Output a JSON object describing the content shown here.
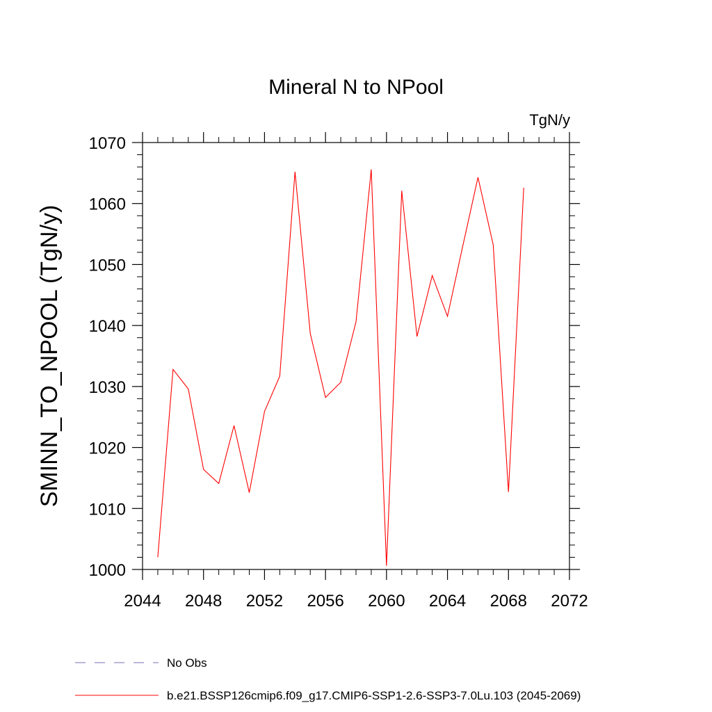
{
  "chart_data": {
    "type": "line",
    "title": "Mineral N to NPool",
    "units_label": "TgN/y",
    "xlabel": "",
    "ylabel": "SMINN_TO_NPOOL  (TgN/y)",
    "xlim": [
      2044,
      2072
    ],
    "ylim": [
      1000,
      1070
    ],
    "x_ticks": [
      2044,
      2048,
      2052,
      2056,
      2060,
      2064,
      2068,
      2072
    ],
    "y_ticks": [
      1000,
      1010,
      1020,
      1030,
      1040,
      1050,
      1060,
      1070
    ],
    "x_minor_step": 1,
    "y_minor_step": 2,
    "grid": false,
    "legend_position": "bottom-left",
    "series": [
      {
        "name": "b.e21.BSSP126cmip6.f09_g17.CMIP6-SSP1-2.6-SSP3-7.0Lu.103 (2045-2069)",
        "color": "#ff0000",
        "dash": "solid",
        "x": [
          2045,
          2046,
          2047,
          2048,
          2049,
          2050,
          2051,
          2052,
          2053,
          2054,
          2055,
          2056,
          2057,
          2058,
          2059,
          2060,
          2061,
          2062,
          2063,
          2064,
          2065,
          2066,
          2067,
          2068,
          2069
        ],
        "y": [
          1002.0,
          1032.8,
          1029.6,
          1016.4,
          1014.1,
          1023.6,
          1012.6,
          1025.9,
          1031.7,
          1065.2,
          1038.7,
          1028.2,
          1030.7,
          1040.6,
          1065.6,
          1000.6,
          1062.1,
          1038.2,
          1048.2,
          1041.5,
          1053.0,
          1064.3,
          1053.2,
          1012.7,
          1062.6
        ]
      },
      {
        "name": "No Obs",
        "color": "#7a6fb0",
        "dash": "dashed",
        "x": [],
        "y": []
      }
    ]
  }
}
